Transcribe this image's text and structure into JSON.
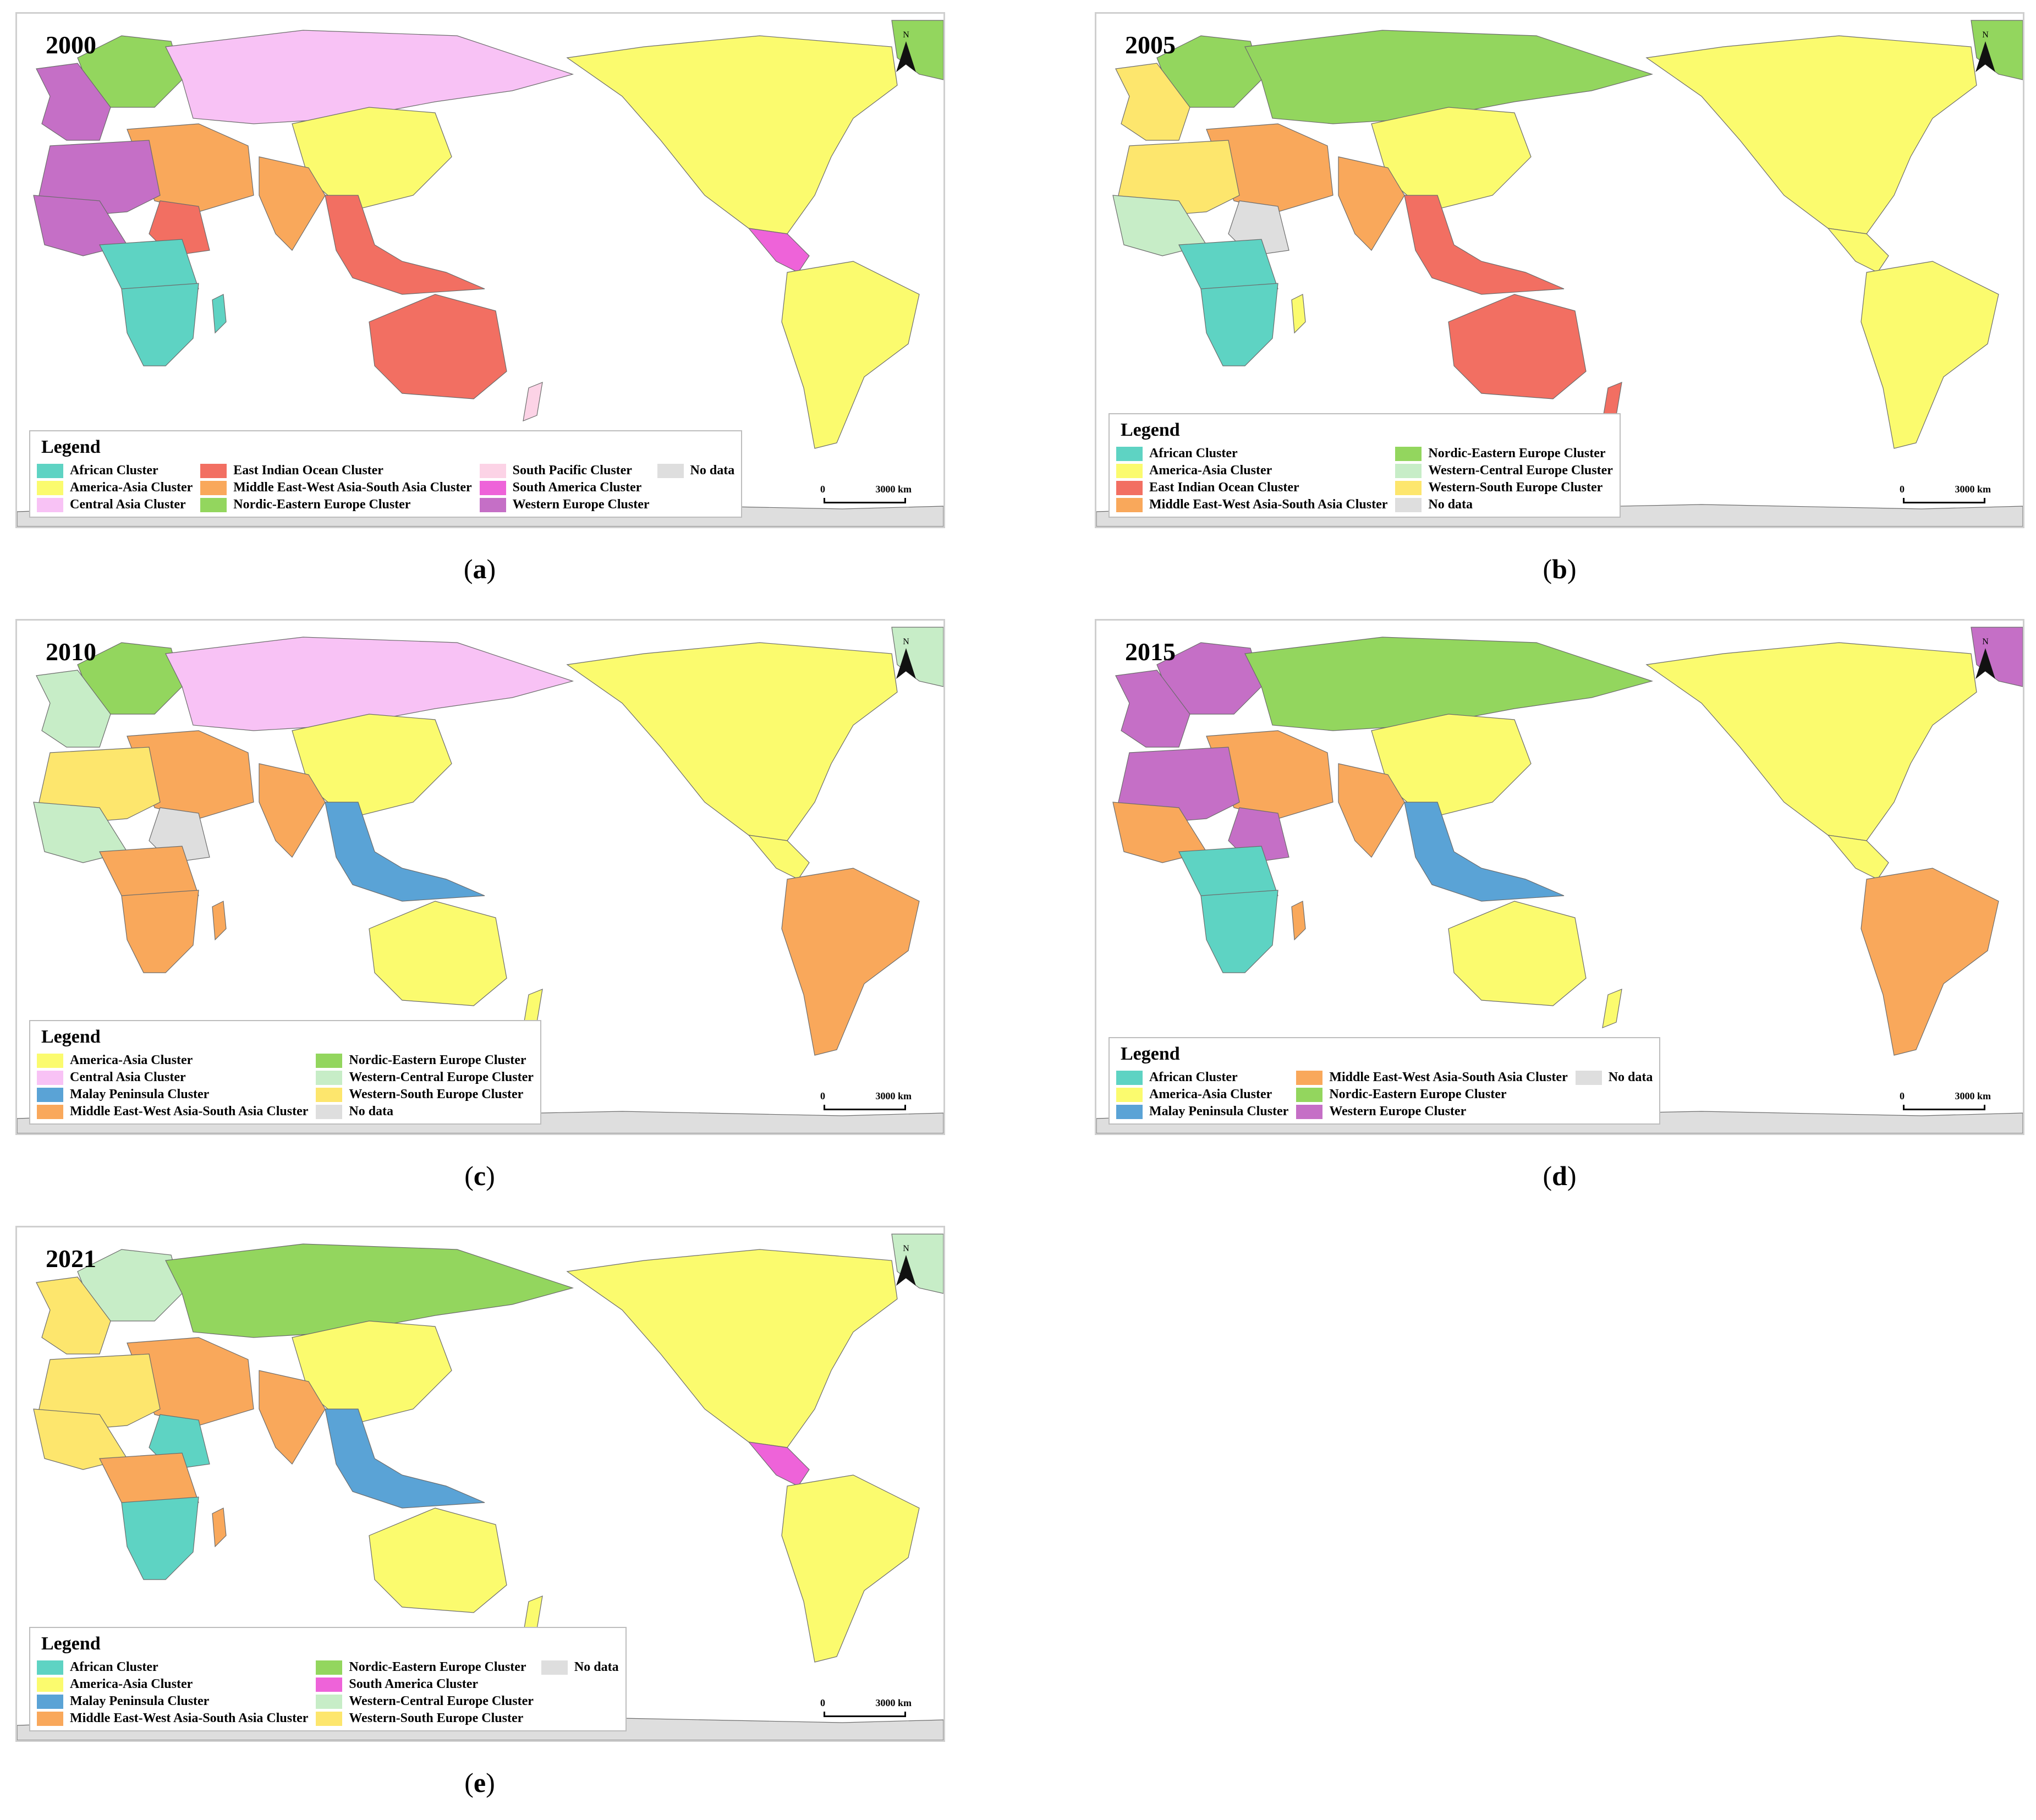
{
  "colors": {
    "African Cluster": "#5ed3c3",
    "America-Asia Cluster": "#fbfb6e",
    "Central Asia Cluster": "#f8c2f5",
    "East Indian Ocean Cluster": "#f26f62",
    "Middle East-West Asia-South Asia Cluster": "#f9a85b",
    "Nordic-Eastern Europe Cluster": "#93d65e",
    "South Pacific Cluster": "#fcd3e6",
    "South America Cluster": "#ee63d9",
    "Western Europe Cluster": "#c56fc6",
    "Western-Central Europe Cluster": "#c7edc7",
    "Western-South Europe Cluster": "#fde66d",
    "Malay Peninsula Cluster": "#5aa3d6",
    "No data": "#dedede"
  },
  "map_common": {
    "north_label": "N",
    "scale_start": "0",
    "scale_end": "3000 km",
    "legend_title": "Legend"
  },
  "panels": [
    {
      "id": "a",
      "year": "2000",
      "caption_letter": "a",
      "legend_rows": 3,
      "legend": [
        "African Cluster",
        "America-Asia Cluster",
        "Central Asia Cluster",
        "East Indian Ocean Cluster",
        "Middle East-West Asia-South Asia Cluster",
        "Nordic-Eastern Europe Cluster",
        "South Pacific Cluster",
        "South America Cluster",
        "Western Europe Cluster",
        "No data"
      ],
      "regions": {
        "north_america": "America-Asia Cluster",
        "central_america": "South America Cluster",
        "south_america": "America-Asia Cluster",
        "greenland": "Nordic-Eastern Europe Cluster",
        "northern_europe": "Nordic-Eastern Europe Cluster",
        "western_europe": "Western Europe Cluster",
        "russia": "Central Asia Cluster",
        "china": "America-Asia Cluster",
        "middle_east": "Middle East-West Asia-South Asia Cluster",
        "india": "Middle East-West Asia-South Asia Cluster",
        "north_africa": "Western Europe Cluster",
        "west_africa": "Western Europe Cluster",
        "east_africa": "East Indian Ocean Cluster",
        "central_africa": "African Cluster",
        "southern_africa": "African Cluster",
        "madagascar": "African Cluster",
        "se_asia": "East Indian Ocean Cluster",
        "australia": "East Indian Ocean Cluster",
        "new_zealand": "South Pacific Cluster",
        "antarctica": "No data"
      }
    },
    {
      "id": "b",
      "year": "2005",
      "caption_letter": "b",
      "legend_rows": 4,
      "legend": [
        "African Cluster",
        "America-Asia Cluster",
        "East Indian Ocean Cluster",
        "Middle East-West Asia-South Asia Cluster",
        "Nordic-Eastern Europe Cluster",
        "Western-Central Europe Cluster",
        "Western-South Europe Cluster",
        "No data"
      ],
      "regions": {
        "north_america": "America-Asia Cluster",
        "central_america": "America-Asia Cluster",
        "south_america": "America-Asia Cluster",
        "greenland": "Nordic-Eastern Europe Cluster",
        "northern_europe": "Nordic-Eastern Europe Cluster",
        "western_europe": "Western-South Europe Cluster",
        "russia": "Nordic-Eastern Europe Cluster",
        "china": "America-Asia Cluster",
        "middle_east": "Middle East-West Asia-South Asia Cluster",
        "india": "Middle East-West Asia-South Asia Cluster",
        "north_africa": "Western-South Europe Cluster",
        "west_africa": "Western-Central Europe Cluster",
        "east_africa": "No data",
        "central_africa": "African Cluster",
        "southern_africa": "African Cluster",
        "madagascar": "America-Asia Cluster",
        "se_asia": "East Indian Ocean Cluster",
        "australia": "East Indian Ocean Cluster",
        "new_zealand": "East Indian Ocean Cluster",
        "antarctica": "No data"
      }
    },
    {
      "id": "c",
      "year": "2010",
      "caption_letter": "c",
      "legend_rows": 4,
      "legend": [
        "America-Asia Cluster",
        "Central Asia Cluster",
        "Malay Peninsula Cluster",
        "Middle East-West Asia-South Asia Cluster",
        "Nordic-Eastern Europe Cluster",
        "Western-Central Europe Cluster",
        "Western-South Europe Cluster",
        "No data"
      ],
      "regions": {
        "north_america": "America-Asia Cluster",
        "central_america": "America-Asia Cluster",
        "south_america": "Middle East-West Asia-South Asia Cluster",
        "greenland": "Western-Central Europe Cluster",
        "northern_europe": "Nordic-Eastern Europe Cluster",
        "western_europe": "Western-Central Europe Cluster",
        "russia": "Central Asia Cluster",
        "china": "America-Asia Cluster",
        "middle_east": "Middle East-West Asia-South Asia Cluster",
        "india": "Middle East-West Asia-South Asia Cluster",
        "north_africa": "Western-South Europe Cluster",
        "west_africa": "Western-Central Europe Cluster",
        "east_africa": "No data",
        "central_africa": "Middle East-West Asia-South Asia Cluster",
        "southern_africa": "Middle East-West Asia-South Asia Cluster",
        "madagascar": "Middle East-West Asia-South Asia Cluster",
        "se_asia": "Malay Peninsula Cluster",
        "australia": "America-Asia Cluster",
        "new_zealand": "America-Asia Cluster",
        "antarctica": "No data"
      }
    },
    {
      "id": "d",
      "year": "2015",
      "caption_letter": "d",
      "legend_rows": 3,
      "legend": [
        "African Cluster",
        "America-Asia Cluster",
        "Malay Peninsula Cluster",
        "Middle East-West Asia-South Asia Cluster",
        "Nordic-Eastern Europe Cluster",
        "Western Europe Cluster",
        "No data"
      ],
      "regions": {
        "north_america": "America-Asia Cluster",
        "central_america": "America-Asia Cluster",
        "south_america": "Middle East-West Asia-South Asia Cluster",
        "greenland": "Western Europe Cluster",
        "northern_europe": "Western Europe Cluster",
        "western_europe": "Western Europe Cluster",
        "russia": "Nordic-Eastern Europe Cluster",
        "china": "America-Asia Cluster",
        "middle_east": "Middle East-West Asia-South Asia Cluster",
        "india": "Middle East-West Asia-South Asia Cluster",
        "north_africa": "Western Europe Cluster",
        "west_africa": "Middle East-West Asia-South Asia Cluster",
        "east_africa": "Western Europe Cluster",
        "central_africa": "African Cluster",
        "southern_africa": "African Cluster",
        "madagascar": "Middle East-West Asia-South Asia Cluster",
        "se_asia": "Malay Peninsula Cluster",
        "australia": "America-Asia Cluster",
        "new_zealand": "America-Asia Cluster",
        "antarctica": "No data"
      }
    },
    {
      "id": "e",
      "year": "2021",
      "caption_letter": "e",
      "legend_rows": 4,
      "legend": [
        "African Cluster",
        "America-Asia Cluster",
        "Malay Peninsula Cluster",
        "Middle East-West Asia-South Asia Cluster",
        "Nordic-Eastern Europe Cluster",
        "South America Cluster",
        "Western-Central Europe Cluster",
        "Western-South Europe Cluster",
        "No data"
      ],
      "regions": {
        "north_america": "America-Asia Cluster",
        "central_america": "South America Cluster",
        "south_america": "America-Asia Cluster",
        "greenland": "Western-Central Europe Cluster",
        "northern_europe": "Western-Central Europe Cluster",
        "western_europe": "Western-South Europe Cluster",
        "russia": "Nordic-Eastern Europe Cluster",
        "china": "America-Asia Cluster",
        "middle_east": "Middle East-West Asia-South Asia Cluster",
        "india": "Middle East-West Asia-South Asia Cluster",
        "north_africa": "Western-South Europe Cluster",
        "west_africa": "Western-South Europe Cluster",
        "east_africa": "African Cluster",
        "central_africa": "Middle East-West Asia-South Asia Cluster",
        "southern_africa": "African Cluster",
        "madagascar": "Middle East-West Asia-South Asia Cluster",
        "se_asia": "Malay Peninsula Cluster",
        "australia": "America-Asia Cluster",
        "new_zealand": "America-Asia Cluster",
        "antarctica": "No data"
      }
    }
  ]
}
